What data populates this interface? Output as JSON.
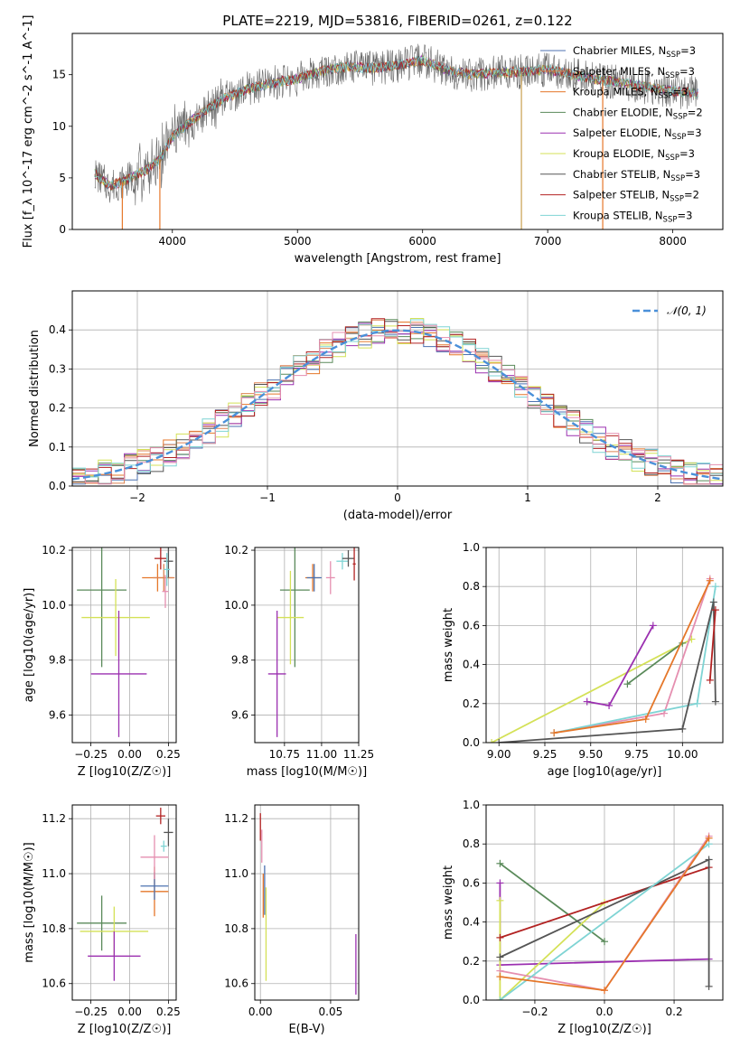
{
  "title": "PLATE=2219, MJD=53816, FIBERID=0261, z=0.122",
  "chart_data": [
    {
      "type": "line",
      "name": "spectrum",
      "xlabel": "wavelength [Angstrom, rest frame]",
      "ylabel": "Flux [f_λ 10^-17 erg cm^-2 s^-1 A^-1]",
      "xlim": [
        3200,
        8400
      ],
      "ylim": [
        0,
        19
      ],
      "xticks": [
        4000,
        5000,
        6000,
        7000,
        8000
      ],
      "yticks": [
        0,
        5,
        10,
        15
      ],
      "legend_position": "upper right",
      "spectrum_envelope": {
        "x": [
          3380,
          3500,
          3600,
          3700,
          3800,
          3900,
          4000,
          4200,
          4400,
          4600,
          4800,
          5000,
          5200,
          5400,
          5600,
          5800,
          6000,
          6200,
          6400,
          6600,
          6800,
          7000,
          7200,
          7400,
          7600,
          7800,
          8000,
          8200
        ],
        "y": [
          5.4,
          4.2,
          4.6,
          5.2,
          5.8,
          6.8,
          9.0,
          11.0,
          12.6,
          13.6,
          14.2,
          14.6,
          15.4,
          15.8,
          15.6,
          15.9,
          16.4,
          15.4,
          15.0,
          15.2,
          15.3,
          15.5,
          15.0,
          14.5,
          14.2,
          13.8,
          13.4,
          13.2
        ]
      },
      "series": [
        {
          "name": "Chabrier MILES, N_SSP=3",
          "label_main": "Chabrier MILES, N",
          "label_tail": "=3",
          "color": "#4c72b0"
        },
        {
          "name": "Salpeter MILES, N_SSP=3",
          "label_main": "Salpeter MILES, N",
          "label_tail": "=3",
          "color": "#dd8452"
        },
        {
          "name": "Kroupa MILES, N_SSP=3",
          "label_main": "Kroupa MILES, N",
          "label_tail": "=3",
          "color": "#e5772a"
        },
        {
          "name": "Chabrier ELODIE, N_SSP=2",
          "label_main": "Chabrier ELODIE, N",
          "label_tail": "=2",
          "color": "#5a8a5a"
        },
        {
          "name": "Salpeter ELODIE, N_SSP=3",
          "label_main": "Salpeter ELODIE, N",
          "label_tail": "=3",
          "color": "#9b30b0"
        },
        {
          "name": "Kroupa ELODIE, N_SSP=3",
          "label_main": "Kroupa ELODIE, N",
          "label_tail": "=3",
          "color": "#d4e157"
        },
        {
          "name": "Chabrier STELIB, N_SSP=3",
          "label_main": "Chabrier STELIB, N",
          "label_tail": "=3",
          "color": "#555555"
        },
        {
          "name": "Salpeter STELIB, N_SSP=2",
          "label_main": "Salpeter STELIB, N",
          "label_tail": "=2",
          "color": "#b22222"
        },
        {
          "name": "Kroupa STELIB, N_SSP=3",
          "label_main": "Kroupa STELIB, N",
          "label_tail": "=3",
          "color": "#7fd4d4"
        }
      ],
      "label_subscript": "SSP"
    },
    {
      "type": "line",
      "name": "residual-histogram",
      "xlabel": "(data-model)/error",
      "ylabel": "Normed distribution",
      "xlim": [
        -2.5,
        2.5
      ],
      "ylim": [
        0,
        0.5
      ],
      "xticks": [
        -2,
        -1,
        0,
        1,
        2
      ],
      "yticks": [
        0.0,
        0.1,
        0.2,
        0.3,
        0.4
      ],
      "grid": true,
      "legend": "𝒩(0, 1)",
      "legend_position": "upper right",
      "reference_curve": {
        "name": "𝒩(0, 1)",
        "mean": 0,
        "sigma": 1,
        "color": "#4a90d9",
        "style": "dashed"
      },
      "bin_width": 0.1,
      "hist_colors": [
        "#4c72b0",
        "#e5772a",
        "#dd8452",
        "#5a8a5a",
        "#9b30b0",
        "#d4e157",
        "#555555",
        "#b22222",
        "#7fd4d4",
        "#e58fb0"
      ]
    },
    {
      "type": "scatter",
      "name": "age-vs-Z",
      "xlabel": "Z [log10(Z/Z☉)]",
      "ylabel": "age [log10(age/yr)]",
      "xlim": [
        -0.37,
        0.3
      ],
      "ylim": [
        9.5,
        10.21
      ],
      "xticks": [
        -0.25,
        0.0,
        0.25
      ],
      "yticks": [
        9.6,
        9.8,
        10.0,
        10.2
      ],
      "grid": true,
      "points": [
        {
          "x": -0.18,
          "y": 10.055,
          "xerr": 0.16,
          "yerr": 0.28,
          "color": "#5a8a5a"
        },
        {
          "x": -0.09,
          "y": 9.955,
          "xerr": 0.22,
          "yerr": 0.14,
          "color": "#d4e157"
        },
        {
          "x": -0.07,
          "y": 9.75,
          "xerr": 0.18,
          "yerr": 0.23,
          "color": "#9b30b0"
        },
        {
          "x": 0.18,
          "y": 10.1,
          "xerr": 0.1,
          "yerr": 0.05,
          "color": "#e5772a"
        },
        {
          "x": 0.22,
          "y": 10.1,
          "xerr": 0.07,
          "yerr": 0.05,
          "color": "#dd8452"
        },
        {
          "x": 0.2,
          "y": 10.17,
          "xerr": 0.04,
          "yerr": 0.04,
          "color": "#b22222"
        },
        {
          "x": 0.25,
          "y": 10.16,
          "xerr": 0.03,
          "yerr": 0.06,
          "color": "#555555"
        },
        {
          "x": 0.24,
          "y": 10.13,
          "xerr": 0.02,
          "yerr": 0.06,
          "color": "#7fd4d4"
        },
        {
          "x": 0.23,
          "y": 10.05,
          "xerr": 0.02,
          "yerr": 0.06,
          "color": "#e58fb0"
        }
      ]
    },
    {
      "type": "scatter",
      "name": "age-vs-mass",
      "xlabel": "mass [log10(M/M☉)]",
      "ylabel": "",
      "xlim": [
        10.55,
        11.25
      ],
      "ylim": [
        9.5,
        10.21
      ],
      "xticks": [
        10.75,
        11.0,
        11.25
      ],
      "yticks": [
        9.6,
        9.8,
        10.0,
        10.2
      ],
      "grid": true,
      "points": [
        {
          "x": 10.82,
          "y": 10.055,
          "xerr": 0.1,
          "yerr": 0.28,
          "color": "#5a8a5a"
        },
        {
          "x": 10.79,
          "y": 9.955,
          "xerr": 0.09,
          "yerr": 0.17,
          "color": "#d4e157"
        },
        {
          "x": 10.7,
          "y": 9.75,
          "xerr": 0.06,
          "yerr": 0.23,
          "color": "#9b30b0"
        },
        {
          "x": 10.94,
          "y": 10.1,
          "xerr": 0.05,
          "yerr": 0.05,
          "color": "#e5772a"
        },
        {
          "x": 10.95,
          "y": 10.1,
          "xerr": 0.05,
          "yerr": 0.05,
          "color": "#4c72b0"
        },
        {
          "x": 11.06,
          "y": 10.1,
          "xerr": 0.03,
          "yerr": 0.06,
          "color": "#e58fb0"
        },
        {
          "x": 11.14,
          "y": 10.16,
          "xerr": 0.04,
          "yerr": 0.03,
          "color": "#7fd4d4"
        },
        {
          "x": 11.18,
          "y": 10.17,
          "xerr": 0.04,
          "yerr": 0.03,
          "color": "#555555"
        },
        {
          "x": 11.22,
          "y": 10.15,
          "xerr": 0.01,
          "yerr": 0.06,
          "color": "#b22222"
        }
      ]
    },
    {
      "type": "line",
      "name": "mass-weight-vs-age",
      "xlabel": "age [log10(age/yr)]",
      "ylabel": "mass weight",
      "xlim": [
        8.93,
        10.22
      ],
      "ylim": [
        0,
        1
      ],
      "xticks": [
        9.0,
        9.25,
        9.5,
        9.75,
        10.0
      ],
      "yticks": [
        0.0,
        0.2,
        0.4,
        0.6,
        0.8,
        1.0
      ],
      "grid": true,
      "series": [
        {
          "color": "#d4e157",
          "points": [
            [
              8.96,
              0.0
            ],
            [
              10.05,
              0.53
            ]
          ]
        },
        {
          "color": "#9b30b0",
          "points": [
            [
              9.48,
              0.21
            ],
            [
              9.6,
              0.19
            ],
            [
              9.84,
              0.6
            ]
          ]
        },
        {
          "color": "#5a8a5a",
          "points": [
            [
              9.7,
              0.3
            ],
            [
              10.0,
              0.51
            ]
          ]
        },
        {
          "color": "#e58fb0",
          "points": [
            [
              9.3,
              0.05
            ],
            [
              9.9,
              0.15
            ],
            [
              10.15,
              0.84
            ]
          ]
        },
        {
          "color": "#7fd4d4",
          "points": [
            [
              9.3,
              0.05
            ],
            [
              10.08,
              0.2
            ],
            [
              10.18,
              0.8
            ]
          ]
        },
        {
          "color": "#e5772a",
          "points": [
            [
              9.3,
              0.05
            ],
            [
              9.8,
              0.12
            ],
            [
              10.15,
              0.83
            ]
          ]
        },
        {
          "color": "#555555",
          "points": [
            [
              9.0,
              0.0
            ],
            [
              10.0,
              0.07
            ],
            [
              10.17,
              0.72
            ],
            [
              10.18,
              0.21
            ]
          ]
        },
        {
          "color": "#b22222",
          "points": [
            [
              10.15,
              0.32
            ],
            [
              10.18,
              0.68
            ]
          ]
        }
      ]
    },
    {
      "type": "scatter",
      "name": "mass-vs-Z",
      "xlabel": "Z [log10(Z/Z☉)]",
      "ylabel": "mass [log10(M/M☉)]",
      "xlim": [
        -0.37,
        0.3
      ],
      "ylim": [
        10.54,
        11.25
      ],
      "xticks": [
        -0.25,
        0.0,
        0.25
      ],
      "yticks": [
        10.6,
        10.8,
        11.0,
        11.2
      ],
      "grid": true,
      "points": [
        {
          "x": -0.18,
          "y": 10.82,
          "xerr": 0.16,
          "yerr": 0.1,
          "color": "#5a8a5a"
        },
        {
          "x": -0.1,
          "y": 10.79,
          "xerr": 0.22,
          "yerr": 0.09,
          "color": "#d4e157"
        },
        {
          "x": -0.1,
          "y": 10.7,
          "xerr": 0.17,
          "yerr": 0.09,
          "color": "#9b30b0"
        },
        {
          "x": 0.16,
          "y": 10.935,
          "xerr": 0.09,
          "yerr": 0.09,
          "color": "#e5772a"
        },
        {
          "x": 0.16,
          "y": 10.955,
          "xerr": 0.09,
          "yerr": 0.05,
          "color": "#4c72b0"
        },
        {
          "x": 0.16,
          "y": 11.06,
          "xerr": 0.09,
          "yerr": 0.08,
          "color": "#e58fb0"
        },
        {
          "x": 0.22,
          "y": 11.1,
          "xerr": 0.02,
          "yerr": 0.02,
          "color": "#7fd4d4"
        },
        {
          "x": 0.2,
          "y": 11.21,
          "xerr": 0.03,
          "yerr": 0.03,
          "color": "#b22222"
        },
        {
          "x": 0.25,
          "y": 11.15,
          "xerr": 0.03,
          "yerr": 0.05,
          "color": "#555555"
        }
      ]
    },
    {
      "type": "scatter",
      "name": "mass-vs-ebv",
      "xlabel": "E(B-V)",
      "ylabel": "",
      "xlim": [
        -0.004,
        0.07
      ],
      "ylim": [
        10.54,
        11.25
      ],
      "xticks": [
        0.0,
        0.05
      ],
      "yticks": [
        10.6,
        10.8,
        11.0,
        11.2
      ],
      "grid": true,
      "points": [
        {
          "x": 0.0,
          "y": 11.17,
          "xerr": 0,
          "yerr": 0.05,
          "color": "#b22222"
        },
        {
          "x": 0.001,
          "y": 11.1,
          "xerr": 0,
          "yerr": 0.06,
          "color": "#e58fb0"
        },
        {
          "x": 0.002,
          "y": 10.92,
          "xerr": 0,
          "yerr": 0.08,
          "color": "#e5772a"
        },
        {
          "x": 0.003,
          "y": 10.94,
          "xerr": 0,
          "yerr": 0.09,
          "color": "#4c72b0"
        },
        {
          "x": 0.004,
          "y": 10.78,
          "xerr": 0,
          "yerr": 0.17,
          "color": "#d4e157"
        },
        {
          "x": 0.068,
          "y": 10.67,
          "xerr": 0,
          "yerr": 0.11,
          "color": "#9b30b0"
        }
      ]
    },
    {
      "type": "line",
      "name": "mass-weight-vs-Z",
      "xlabel": "Z [log10(Z/Z☉)]",
      "ylabel": "mass weight",
      "xlim": [
        -0.34,
        0.34
      ],
      "ylim": [
        0,
        1
      ],
      "xticks": [
        -0.2,
        0.0,
        0.2
      ],
      "yticks": [
        0.0,
        0.2,
        0.4,
        0.6,
        0.8,
        1.0
      ],
      "grid": true,
      "series": [
        {
          "color": "#5a8a5a",
          "points": [
            [
              -0.3,
              0.7
            ],
            [
              0.0,
              0.3
            ]
          ]
        },
        {
          "color": "#9b30b0",
          "points": [
            [
              -0.3,
              0.6
            ],
            [
              -0.3,
              0.18
            ],
            [
              0.3,
              0.21
            ]
          ]
        },
        {
          "color": "#d4e157",
          "points": [
            [
              -0.3,
              0.51
            ],
            [
              -0.3,
              0.0
            ],
            [
              0.0,
              0.5
            ]
          ]
        },
        {
          "color": "#b22222",
          "points": [
            [
              -0.3,
              0.32
            ],
            [
              0.3,
              0.68
            ]
          ]
        },
        {
          "color": "#555555",
          "points": [
            [
              -0.3,
              0.22
            ],
            [
              0.3,
              0.72
            ],
            [
              0.3,
              0.07
            ]
          ]
        },
        {
          "color": "#e58fb0",
          "points": [
            [
              -0.3,
              0.15
            ],
            [
              0.0,
              0.05
            ],
            [
              0.3,
              0.84
            ]
          ]
        },
        {
          "color": "#7fd4d4",
          "points": [
            [
              -0.3,
              0.0
            ],
            [
              0.3,
              0.8
            ]
          ]
        },
        {
          "color": "#e5772a",
          "points": [
            [
              -0.3,
              0.12
            ],
            [
              0.0,
              0.05
            ],
            [
              0.3,
              0.83
            ]
          ]
        }
      ]
    }
  ]
}
